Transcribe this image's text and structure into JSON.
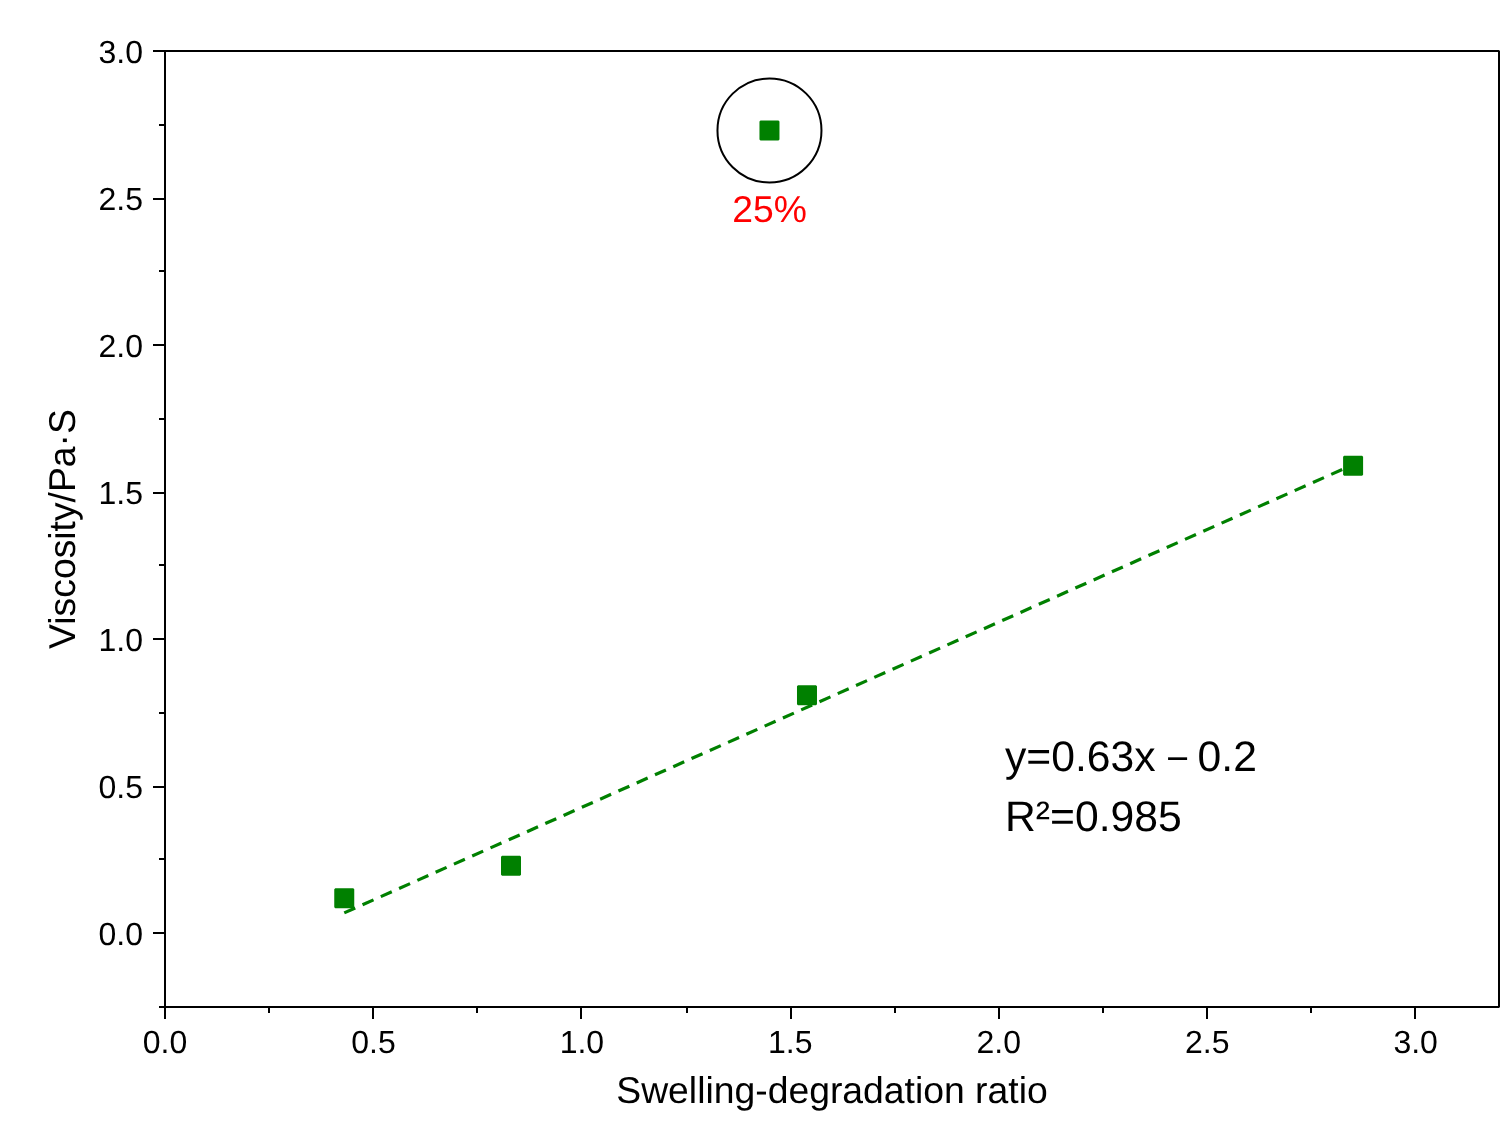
{
  "chart_data": {
    "type": "scatter",
    "xlabel": "Swelling-degradation ratio",
    "ylabel": "Viscosity/Pa·S",
    "series": [
      {
        "color": "#008000",
        "x": [
          0.43,
          0.83,
          1.54,
          2.85,
          1.45
        ],
        "values": [
          0.12,
          0.23,
          0.81,
          1.59,
          2.73
        ]
      },
      {
        "type": "line",
        "color": "#008000",
        "line_style": "dashed",
        "marker": "none",
        "x": [
          0.43,
          2.86
        ],
        "values": [
          0.07,
          1.6
        ]
      }
    ],
    "marker": "square",
    "xlim": [
      0,
      3.2
    ],
    "ylim": [
      -0.25,
      3.0
    ],
    "xticks": [
      {
        "value": 0,
        "label": "0.0"
      },
      0.5,
      {
        "value": 1,
        "label": "1.0"
      },
      1.5,
      {
        "value": 2,
        "label": "2.0"
      },
      2.5,
      {
        "value": 3,
        "label": "3.0"
      }
    ],
    "yticks": [
      {
        "value": 0,
        "label": "0.0"
      },
      0.5,
      {
        "value": 1,
        "label": "1.0"
      },
      1.5,
      {
        "value": 2,
        "label": "2.0"
      },
      2.5,
      {
        "value": 3,
        "label": "3.0"
      }
    ],
    "grid": false,
    "annotations": [
      {
        "text": "25%",
        "x": 1.45,
        "y": 2.73
      },
      "y=0.63x－0.2",
      "R²=0.985"
    ]
  }
}
